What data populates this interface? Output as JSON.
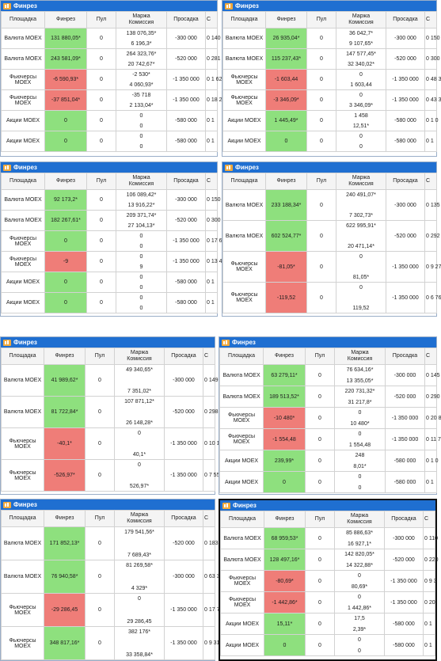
{
  "app_title": "Финрез",
  "headers": {
    "venue": "Площадка",
    "finrez": "Финрез",
    "pool": "Пул",
    "margin": "Маржа",
    "commission": "Комиссия",
    "drawdown": "Просадка",
    "cut": "С"
  },
  "panels": [
    {
      "rows": [
        {
          "venue": "Валюта MOEX",
          "fin": "131 880,05*",
          "sign": "pos",
          "pool": "0",
          "m1": "138 076,35*",
          "m2": "6 196,3*",
          "draw": "-300 000",
          "tail": "0 140 t"
        },
        {
          "venue": "Валюта MOEX",
          "fin": "243 581,09*",
          "sign": "pos",
          "pool": "0",
          "m1": "264 323,76*",
          "m2": "20 742,67*",
          "draw": "-520 000",
          "tail": "0 281 7"
        },
        {
          "venue": "Фьючерсы MOEX",
          "fin": "-6 590,93*",
          "sign": "neg",
          "pool": "0",
          "m1": "-2 530*",
          "m2": "4 060,93*",
          "draw": "-1 350 000",
          "tail": "0 1 62"
        },
        {
          "venue": "Фьючерсы MOEX",
          "fin": "-37 851,04*",
          "sign": "neg",
          "pool": "0",
          "m1": "-35 718",
          "m2": "2 133,04*",
          "draw": "-1 350 000",
          "tail": "0 18 2"
        },
        {
          "venue": "Акции MOEX",
          "fin": "0",
          "sign": "zero",
          "pool": "0",
          "m1": "0",
          "m2": "0",
          "draw": "-580 000",
          "tail": "0 1"
        },
        {
          "venue": "Акции MOEX",
          "fin": "0",
          "sign": "zero",
          "pool": "0",
          "m1": "0",
          "m2": "0",
          "draw": "-580 000",
          "tail": "0 1"
        }
      ]
    },
    {
      "rows": [
        {
          "venue": "Валюта MOEX",
          "fin": "26 935,04*",
          "sign": "pos",
          "pool": "0",
          "m1": "36 042,7*",
          "m2": "9 107,65*",
          "draw": "-300 000",
          "tail": "0 150"
        },
        {
          "venue": "Валюта MOEX",
          "fin": "115 237,43*",
          "sign": "pos",
          "pool": "0",
          "m1": "147 577,45*",
          "m2": "32 340,02*",
          "draw": "-520 000",
          "tail": "0 300"
        },
        {
          "venue": "Фьючерсы MOEX",
          "fin": "-1 603,44",
          "sign": "neg",
          "pool": "0",
          "m1": "0",
          "m2": "1 603,44",
          "draw": "-1 350 000",
          "tail": "0 48 3"
        },
        {
          "venue": "Фьючерсы MOEX",
          "fin": "-3 346,09*",
          "sign": "neg",
          "pool": "0",
          "m1": "0",
          "m2": "3 346,09*",
          "draw": "-1 350 000",
          "tail": "0 43 3"
        },
        {
          "venue": "Акции MOEX",
          "fin": "1 445,49*",
          "sign": "pos",
          "pool": "0",
          "m1": "1 458",
          "m2": "12,51*",
          "draw": "-580 000",
          "tail": "0 1 0"
        },
        {
          "venue": "Акции MOEX",
          "fin": "0",
          "sign": "zero",
          "pool": "0",
          "m1": "0",
          "m2": "0",
          "draw": "-580 000",
          "tail": "0 1"
        }
      ]
    },
    {
      "rows": [
        {
          "venue": "Валюта MOEX",
          "fin": "92 173,2*",
          "sign": "pos",
          "pool": "0",
          "m1": "106 089,42*",
          "m2": "13 916,22*",
          "draw": "-300 000",
          "tail": "0 150"
        },
        {
          "venue": "Валюта MOEX",
          "fin": "182 267,61*",
          "sign": "pos",
          "pool": "0",
          "m1": "209 371,74*",
          "m2": "27 104,13*",
          "draw": "-520 000",
          "tail": "0 300"
        },
        {
          "venue": "Фьючерсы MOEX",
          "fin": "0",
          "sign": "zero",
          "pool": "0",
          "m1": "0",
          "m2": "0",
          "draw": "-1 350 000",
          "tail": "0 17 6"
        },
        {
          "venue": "Фьючерсы MOEX",
          "fin": "-9",
          "sign": "neg",
          "pool": "0",
          "m1": "0",
          "m2": "9",
          "draw": "-1 350 000",
          "tail": "0 13 4"
        },
        {
          "venue": "Акции MOEX",
          "fin": "0",
          "sign": "zero",
          "pool": "0",
          "m1": "0",
          "m2": "0",
          "draw": "-580 000",
          "tail": "0 1"
        },
        {
          "venue": "Акции MOEX",
          "fin": "0",
          "sign": "zero",
          "pool": "0",
          "m1": "0",
          "m2": "0",
          "draw": "-580 000",
          "tail": "0 1"
        }
      ]
    },
    {
      "rows": [
        {
          "venue": "Валюта MOEX",
          "fin": "233 188,34*",
          "sign": "pos",
          "pool": "0",
          "m1": "240 491,07*",
          "m2": "7 302,73*",
          "draw": "-300 000",
          "tail": "0 135"
        },
        {
          "venue": "Валюта MOEX",
          "fin": "602 524,77*",
          "sign": "pos",
          "pool": "0",
          "m1": "622 995,91*",
          "m2": "20 471,14*",
          "draw": "-520 000",
          "tail": "0 292"
        },
        {
          "venue": "Фьючерсы MOEX",
          "fin": "-81,05*",
          "sign": "neg",
          "pool": "0",
          "m1": "0",
          "m2": "81,05*",
          "draw": "-1 350 000",
          "tail": "0 9 27"
        },
        {
          "venue": "Фьючерсы MOEX",
          "fin": "-119,52",
          "sign": "neg",
          "pool": "0",
          "m1": "0",
          "m2": "119,52",
          "draw": "-1 350 000",
          "tail": "0 6 76"
        }
      ]
    },
    {
      "rows": [
        {
          "venue": "Валюта MOEX",
          "fin": "41 989,62*",
          "sign": "pos",
          "pool": "0",
          "m1": "49 340,65*",
          "m2": "7 351,02*",
          "draw": "-300 000",
          "tail": "0 149"
        },
        {
          "venue": "Валюта MOEX",
          "fin": "81 722,84*",
          "sign": "pos",
          "pool": "0",
          "m1": "107 871,12*",
          "m2": "26 148,28*",
          "draw": "-520 000",
          "tail": "0 298"
        },
        {
          "venue": "Фьючерсы MOEX",
          "fin": "-40,1*",
          "sign": "neg",
          "pool": "0",
          "m1": "0",
          "m2": "40,1*",
          "draw": "-1 350 000",
          "tail": "0 10 1"
        },
        {
          "venue": "Фьючерсы MOEX",
          "fin": "-526,97*",
          "sign": "neg",
          "pool": "0",
          "m1": "0",
          "m2": "526,97*",
          "draw": "-1 350 000",
          "tail": "0 7 55"
        }
      ]
    },
    {
      "rows": [
        {
          "venue": "Валюта MOEX",
          "fin": "63 279,11*",
          "sign": "pos",
          "pool": "0",
          "m1": "76 634,16*",
          "m2": "13 355,05*",
          "draw": "-300 000",
          "tail": "0 145"
        },
        {
          "venue": "Валюта MOEX",
          "fin": "189 513,52*",
          "sign": "pos",
          "pool": "0",
          "m1": "220 731,32*",
          "m2": "31 217,8*",
          "draw": "-520 000",
          "tail": "0 290"
        },
        {
          "venue": "Фьючерсы MOEX",
          "fin": "-10 480*",
          "sign": "neg",
          "pool": "0",
          "m1": "0",
          "m2": "10 480*",
          "draw": "-1 350 000",
          "tail": "0 20 8"
        },
        {
          "venue": "Фьючерсы MOEX",
          "fin": "-1 554,48",
          "sign": "neg",
          "pool": "0",
          "m1": "0",
          "m2": "1 554,48",
          "draw": "-1 350 000",
          "tail": "0 11 7"
        },
        {
          "venue": "Акции MOEX",
          "fin": "239,99*",
          "sign": "pos",
          "pool": "0",
          "m1": "248",
          "m2": "8,01*",
          "draw": "-580 000",
          "tail": "0 1 0"
        },
        {
          "venue": "Акции MOEX",
          "fin": "0",
          "sign": "zero",
          "pool": "0",
          "m1": "0",
          "m2": "0",
          "draw": "-580 000",
          "tail": "0 1"
        }
      ]
    },
    {
      "rows": [
        {
          "venue": "Валюта MOEX",
          "fin": "171 852,13*",
          "sign": "pos",
          "pool": "0",
          "m1": "179 541,56*",
          "m2": "7 689,43*",
          "draw": "-520 000",
          "tail": "0 183"
        },
        {
          "venue": "Валюта MOEX",
          "fin": "76 940,58*",
          "sign": "pos",
          "pool": "0",
          "m1": "81 269,58*",
          "m2": "4 329*",
          "draw": "-300 000",
          "tail": "0 63 3"
        },
        {
          "venue": "Фьючерсы MOEX",
          "fin": "-29 286,45",
          "sign": "neg",
          "pool": "0",
          "m1": "0",
          "m2": "29 286,45",
          "draw": "-1 350 000",
          "tail": "0 17 7"
        },
        {
          "venue": "Фьючерсы MOEX",
          "fin": "348 817,16*",
          "sign": "pos",
          "pool": "0",
          "m1": "382 176*",
          "m2": "33 358,84*",
          "draw": "-1 350 000",
          "tail": "0 9 31"
        }
      ]
    },
    {
      "rows": [
        {
          "venue": "Валюта MOEX",
          "fin": "68 959,53*",
          "sign": "pos",
          "pool": "0",
          "m1": "85 886,63*",
          "m2": "16 927,1*",
          "draw": "-300 000",
          "tail": "0 110"
        },
        {
          "venue": "Валюта MOEX",
          "fin": "128 497,16*",
          "sign": "pos",
          "pool": "0",
          "m1": "142 820,05*",
          "m2": "14 322,88*",
          "draw": "-520 000",
          "tail": "0 220"
        },
        {
          "venue": "Фьючерсы MOEX",
          "fin": "-80,69*",
          "sign": "neg",
          "pool": "0",
          "m1": "0",
          "m2": "80,69*",
          "draw": "-1 350 000",
          "tail": "0 9 3"
        },
        {
          "venue": "Фьючерсы MOEX",
          "fin": "-1 442,86*",
          "sign": "neg",
          "pool": "0",
          "m1": "0",
          "m2": "1 442,86*",
          "draw": "-1 350 000",
          "tail": "0 20"
        },
        {
          "venue": "Акции MOEX",
          "fin": "15,11*",
          "sign": "pos",
          "pool": "0",
          "m1": "17,5",
          "m2": "2,39*",
          "draw": "-580 000",
          "tail": "0 1"
        },
        {
          "venue": "Акции MOEX",
          "fin": "0",
          "sign": "zero",
          "pool": "0",
          "m1": "0",
          "m2": "0",
          "draw": "-580 000",
          "tail": "0 1"
        }
      ]
    }
  ]
}
